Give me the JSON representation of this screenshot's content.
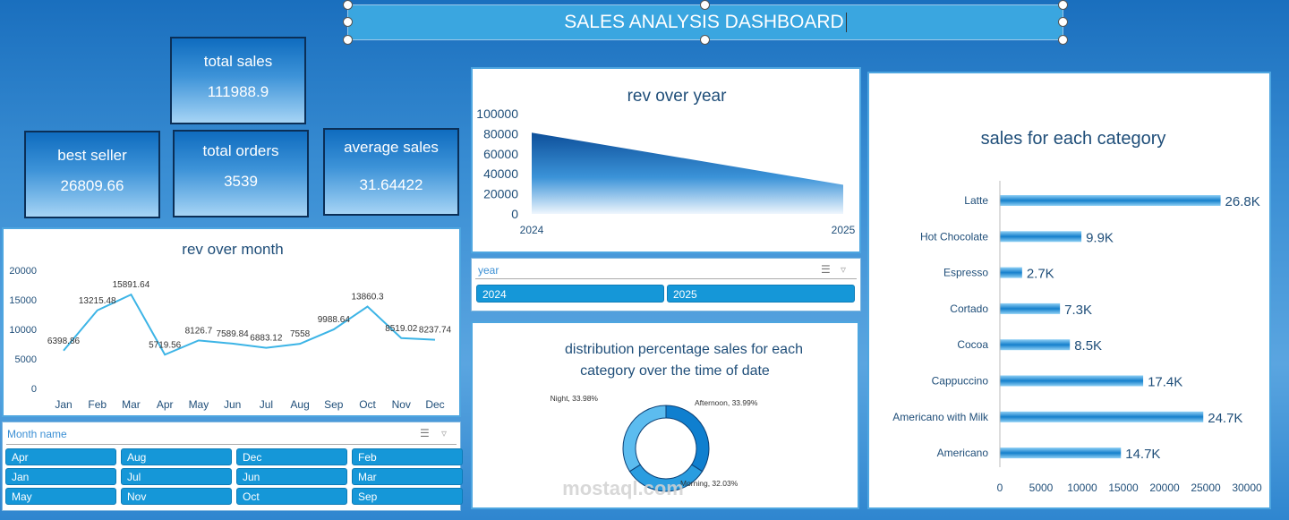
{
  "dashboard": {
    "title": "SALES ANALYSIS DASHBOARD"
  },
  "kpis": {
    "total_sales": {
      "label": "total sales",
      "value": "111988.9"
    },
    "best_seller": {
      "label": "best seller",
      "value": "26809.66"
    },
    "total_orders": {
      "label": "total orders",
      "value": "3539"
    },
    "average_sales": {
      "label": "average sales",
      "value": "31.64422"
    }
  },
  "rev_over_year": {
    "title": "rev over year",
    "chart_data": {
      "type": "area",
      "x": [
        "2024",
        "2025"
      ],
      "values": [
        81000,
        29000
      ],
      "yticks": [
        "0",
        "20000",
        "40000",
        "60000",
        "80000",
        "100000"
      ],
      "ylim": [
        0,
        100000
      ]
    }
  },
  "year_slicer": {
    "header": "year",
    "items": [
      "2024",
      "2025"
    ]
  },
  "rev_over_month": {
    "title": "rev over month",
    "chart_data": {
      "type": "line",
      "categories": [
        "Jan",
        "Feb",
        "Mar",
        "Apr",
        "May",
        "Jun",
        "Jul",
        "Aug",
        "Sep",
        "Oct",
        "Nov",
        "Dec"
      ],
      "values": [
        6398.86,
        13215.48,
        15891.64,
        5719.56,
        8126.7,
        7589.84,
        6883.12,
        7558,
        9988.64,
        13860.3,
        8519.02,
        8237.74
      ],
      "labels": [
        "6398.86",
        "13215.48",
        "15891.64",
        "5719.56",
        "8126.7",
        "7589.84",
        "6883.12",
        "7558",
        "9988.64",
        "13860.3",
        "8519.02",
        "8237.74"
      ],
      "yticks": [
        "0",
        "5000",
        "10000",
        "15000",
        "20000"
      ],
      "ylim": [
        0,
        20000
      ],
      "color": "#3cb4e6"
    }
  },
  "month_slicer": {
    "header": "Month name",
    "items": [
      "Apr",
      "Aug",
      "Dec",
      "Feb",
      "Jan",
      "Jul",
      "Jun",
      "Mar",
      "May",
      "Nov",
      "Oct",
      "Sep"
    ]
  },
  "distribution": {
    "title_line1": "distribution  percentage sales   for each",
    "title_line2": "category over the time of date",
    "chart_data": {
      "type": "pie",
      "slices": [
        {
          "label": "Afternoon, 33.99%",
          "value": 33.99,
          "color": "#0f7fcf"
        },
        {
          "label": "Morning, 32.03%",
          "value": 32.03,
          "color": "#2a9de0"
        },
        {
          "label": "Night, 33.98%",
          "value": 33.98,
          "color": "#5cbcef"
        }
      ]
    }
  },
  "sales_by_category": {
    "title": "sales for each  category",
    "chart_data": {
      "type": "bar",
      "orientation": "horizontal",
      "categories": [
        "Latte",
        "Hot Chocolate",
        "Espresso",
        "Cortado",
        "Cocoa",
        "Cappuccino",
        "Americano with Milk",
        "Americano"
      ],
      "values": [
        26800,
        9900,
        2700,
        7300,
        8500,
        17400,
        24700,
        14700
      ],
      "labels": [
        "26.8K",
        "9.9K",
        "2.7K",
        "7.3K",
        "8.5K",
        "17.4K",
        "24.7K",
        "14.7K"
      ],
      "xticks": [
        "0",
        "5000",
        "10000",
        "15000",
        "20000",
        "25000",
        "30000"
      ],
      "xlim": [
        0,
        30000
      ]
    }
  },
  "watermark": {
    "text": "mostaql.com"
  }
}
